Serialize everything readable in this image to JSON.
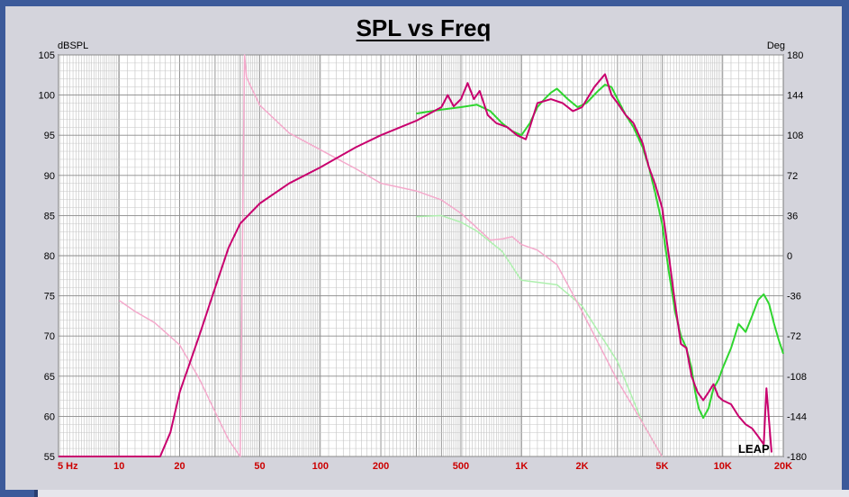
{
  "chart_data": {
    "type": "line",
    "title": "SPL vs Freq",
    "ylabel_left": "dBSPL",
    "ylabel_right": "Deg",
    "x_scale": "log",
    "xlim": [
      5,
      20000
    ],
    "ylim_left": [
      55,
      105
    ],
    "ylim_right": [
      -180,
      180
    ],
    "grid": true,
    "x_tick_labels": [
      {
        "value": 5,
        "label": "5  Hz"
      },
      {
        "value": 10,
        "label": "10"
      },
      {
        "value": 20,
        "label": "20"
      },
      {
        "value": 50,
        "label": "50"
      },
      {
        "value": 100,
        "label": "100"
      },
      {
        "value": 200,
        "label": "200"
      },
      {
        "value": 500,
        "label": "500"
      },
      {
        "value": 1000,
        "label": "1K"
      },
      {
        "value": 2000,
        "label": "2K"
      },
      {
        "value": 5000,
        "label": "5K"
      },
      {
        "value": 10000,
        "label": "10K"
      },
      {
        "value": 20000,
        "label": "20K"
      }
    ],
    "y_left_ticks": [
      105,
      100,
      95,
      90,
      85,
      80,
      75,
      70,
      65,
      60,
      55
    ],
    "y_right_ticks": [
      180,
      144,
      108,
      72,
      36,
      0,
      -36,
      -72,
      -108,
      -144,
      -180
    ],
    "watermark": "LEAP",
    "series": [
      {
        "axis": "left",
        "color": "#c8006e",
        "width": 2,
        "x": [
          5,
          16,
          18,
          20,
          25,
          30,
          35,
          40,
          50,
          70,
          100,
          150,
          200,
          300,
          400,
          430,
          460,
          500,
          540,
          580,
          620,
          680,
          750,
          850,
          950,
          1050,
          1100,
          1200,
          1400,
          1600,
          1800,
          2000,
          2300,
          2600,
          2800,
          3000,
          3300,
          3600,
          4000,
          4300,
          4600,
          5000,
          5400,
          5800,
          6200,
          6600,
          7000,
          7500,
          8000,
          8500,
          9000,
          9500,
          10000,
          11000,
          12000,
          13000,
          14000,
          15000,
          16000,
          16500,
          17500
        ],
        "y": [
          55,
          55,
          58,
          63,
          70,
          76,
          81,
          84,
          86.5,
          89,
          91,
          93.5,
          95,
          96.8,
          98.5,
          100,
          98.6,
          99.5,
          101.5,
          99.5,
          100.5,
          97.5,
          96.5,
          96,
          95,
          94.5,
          96,
          99,
          99.5,
          99,
          98,
          98.5,
          101,
          102.6,
          100,
          99,
          97.5,
          96.5,
          94,
          91,
          89,
          86,
          80,
          74,
          69,
          68.5,
          65,
          63,
          62,
          63,
          64,
          62.5,
          62,
          61.5,
          60,
          59,
          58.5,
          57.5,
          56.5,
          63.5,
          55.5
        ]
      },
      {
        "axis": "left",
        "color": "#2fd52f",
        "width": 2,
        "x": [
          300,
          400,
          500,
          600,
          700,
          800,
          900,
          1000,
          1100,
          1200,
          1300,
          1400,
          1500,
          1700,
          1900,
          2100,
          2400,
          2600,
          2800,
          3000,
          3300,
          3600,
          4000,
          4300,
          4600,
          5000,
          5400,
          5800,
          6200,
          6600,
          7000,
          7300,
          7600,
          8000,
          8500,
          9000,
          9500,
          10000,
          11000,
          12000,
          13000,
          14000,
          15000,
          16000,
          17000,
          18000,
          19000,
          20000
        ],
        "y": [
          97.7,
          98.2,
          98.5,
          98.8,
          98,
          96.5,
          95.5,
          95,
          96.5,
          98.5,
          99.5,
          100.3,
          100.8,
          99.5,
          98.5,
          99,
          100.5,
          101.3,
          101,
          99.5,
          97.5,
          96,
          93.5,
          91,
          88,
          84,
          78,
          73,
          70,
          68.5,
          66,
          63,
          61,
          59.8,
          61,
          63.5,
          64.5,
          66,
          68.5,
          71.5,
          70.5,
          72.5,
          74.5,
          75.2,
          74,
          71.5,
          69.5,
          67.8
        ]
      },
      {
        "axis": "right",
        "color": "#f4a9cb",
        "width": 1.5,
        "x": [
          10,
          12,
          15,
          20,
          25,
          30,
          35,
          40,
          42,
          43,
          50,
          70,
          100,
          150,
          200,
          300,
          400,
          500,
          700,
          800,
          900,
          1000,
          1200,
          1500,
          2000,
          3000,
          4000,
          5000
        ],
        "y": [
          -40,
          -50,
          -60,
          -80,
          -110,
          -140,
          -165,
          -180,
          180,
          160,
          135,
          110,
          95,
          78,
          65,
          58,
          50,
          38,
          14,
          15,
          17,
          10,
          5,
          -8,
          -50,
          -112,
          -150,
          -180
        ]
      },
      {
        "axis": "right",
        "color": "#aef0ae",
        "width": 1.5,
        "x": [
          300,
          400,
          500,
          600,
          800,
          1000,
          1500,
          2000,
          3000,
          4000,
          5000
        ],
        "y": [
          35,
          36,
          30,
          22,
          4,
          -22,
          -26,
          -45,
          -95,
          -150,
          -180
        ]
      }
    ]
  }
}
